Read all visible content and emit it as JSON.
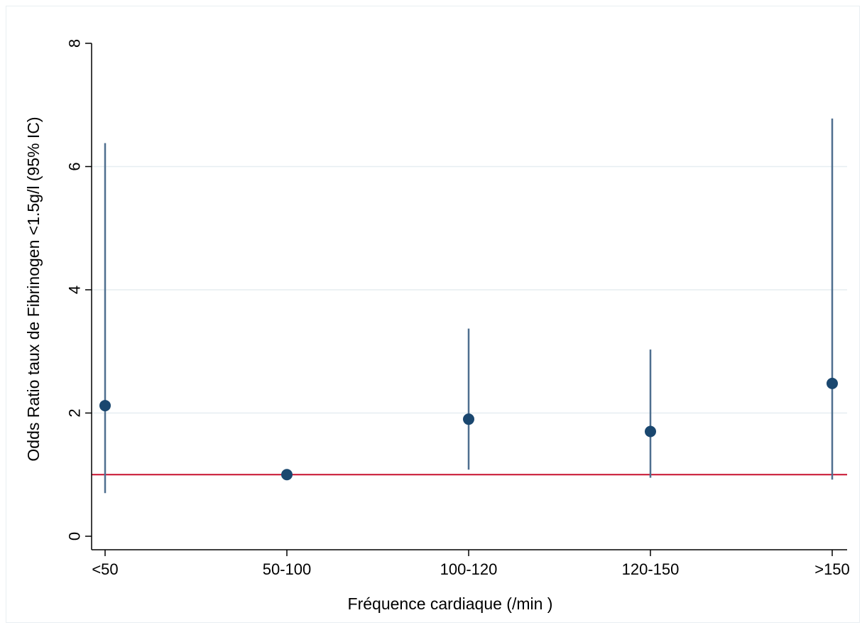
{
  "chart_data": {
    "type": "scatter",
    "subtype": "point-estimate-with-confidence-interval",
    "title": "",
    "xlabel": "Fréquence cardiaque (/min )",
    "ylabel": "Odds Ratio taux de Fibrinogen <1.5g/l (95% IC)",
    "categories": [
      "<50",
      "50-100",
      "100-120",
      "120-150",
      ">150"
    ],
    "estimates": [
      2.12,
      1.0,
      1.9,
      1.7,
      2.48
    ],
    "ci_lower": [
      0.7,
      null,
      1.08,
      0.95,
      0.92
    ],
    "ci_upper": [
      6.38,
      null,
      3.37,
      3.03,
      6.78
    ],
    "reference_line": 1,
    "ylim": [
      0,
      8
    ],
    "yticks": [
      0,
      2,
      4,
      6,
      8
    ],
    "grid": true,
    "legend": "none",
    "colors": {
      "points": "#1a476f",
      "ci_bars": "#4f6f8f",
      "reference_line": "#c8102e",
      "grid": "#e6eef1",
      "axis": "#000000"
    }
  }
}
